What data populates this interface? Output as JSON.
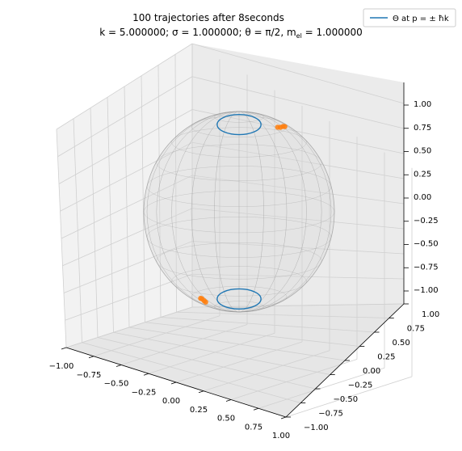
{
  "chart_data": {
    "type": "scatter",
    "title_line1": "100 trajectories after 8seconds",
    "title_line2": "k = 5.000000; σ = 1.000000; θ = π/2, m",
    "title_line2_sub": "el",
    "title_line2_end": " = 1.000000",
    "legend": {
      "position": "top-right",
      "entries": [
        {
          "label_prefix": "Θ at p = ± ħk",
          "color": "#1f77b4"
        }
      ]
    },
    "x_ticks": [
      "−1.00",
      "−0.75",
      "−0.50",
      "−0.25",
      "0.00",
      "0.25",
      "0.50",
      "0.75",
      "1.00"
    ],
    "y_ticks": [
      "1.00",
      "0.75",
      "0.50",
      "0.25",
      "0.00",
      "−0.25",
      "−0.50",
      "−0.75",
      "−1.00"
    ],
    "z_ticks": [
      "1.00",
      "0.75",
      "0.50",
      "0.25",
      "0.00",
      "−0.25",
      "−0.50",
      "−0.75",
      "−1.00"
    ],
    "xlim": [
      -1,
      1
    ],
    "ylim": [
      -1,
      1
    ],
    "zlim": [
      -1,
      1
    ],
    "grid": true,
    "sphere": {
      "radius": 1,
      "color": "#9a9a9a"
    },
    "series": [
      {
        "name": "Θ at p = ± ħk",
        "type": "circle",
        "z": 0.87,
        "radius": 0.5,
        "color": "#1f77b4"
      },
      {
        "type": "circle",
        "z": -0.87,
        "radius": 0.5,
        "color": "#1f77b4"
      },
      {
        "type": "points",
        "color": "#ff7f0e",
        "points": [
          [
            0.45,
            0.1,
            0.86
          ],
          [
            0.47,
            0.05,
            0.86
          ],
          [
            0.43,
            0.15,
            0.87
          ],
          [
            0.48,
            0.0,
            0.85
          ],
          [
            -0.35,
            0.1,
            -0.87
          ],
          [
            -0.38,
            0.05,
            -0.86
          ],
          [
            -0.33,
            0.12,
            -0.88
          ],
          [
            -0.4,
            0.02,
            -0.86
          ]
        ]
      }
    ]
  }
}
